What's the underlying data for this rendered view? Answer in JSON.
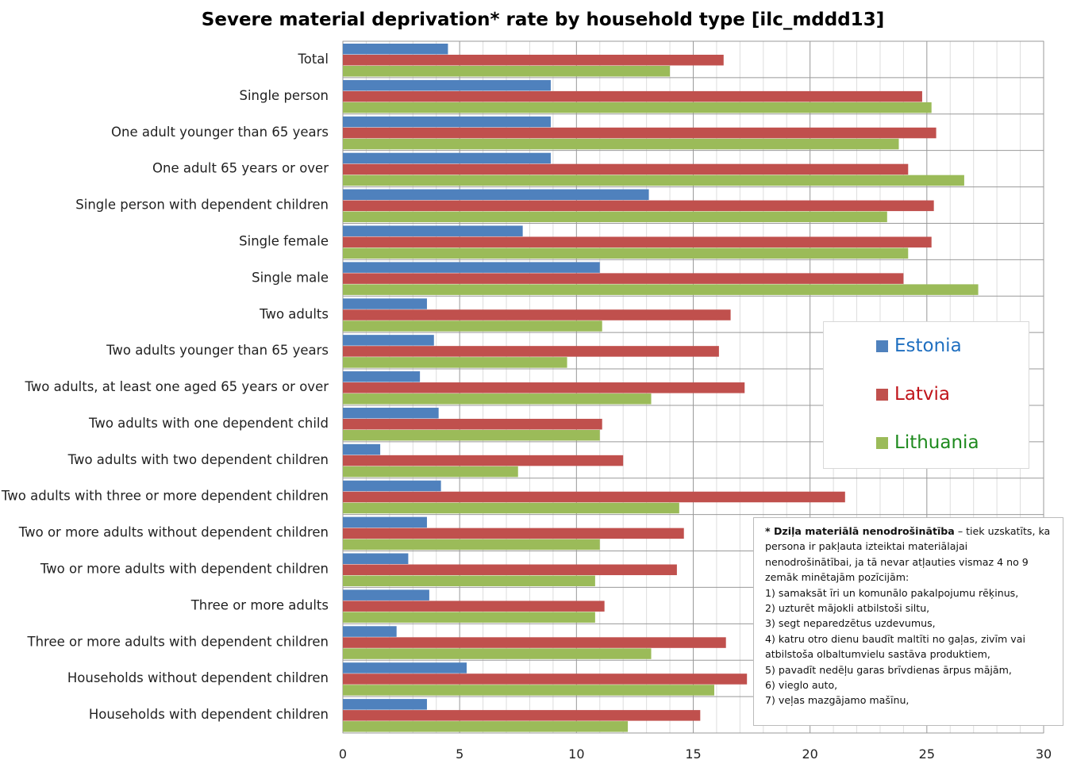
{
  "chart_data": {
    "type": "bar",
    "orientation": "horizontal",
    "title": "Severe material deprivation* rate by household type [ilc_mddd13]",
    "xlabel": "",
    "ylabel": "",
    "xlim": [
      0,
      30
    ],
    "xticks": [
      0,
      5,
      10,
      15,
      20,
      25,
      30
    ],
    "grid": true,
    "legend_position": "right",
    "categories": [
      "Total",
      "Single person",
      "One adult younger than 65 years",
      "One adult 65 years or over",
      "Single person with dependent children",
      "Single female",
      "Single male",
      "Two adults",
      "Two adults younger than 65 years",
      "Two adults, at least one aged 65 years or over",
      "Two adults with one dependent child",
      "Two adults with two dependent children",
      "Two adults with three or more dependent children",
      "Two or more adults without dependent children",
      "Two or more adults with dependent children",
      "Three or more adults",
      "Three or more adults with dependent children",
      "Households without dependent children",
      "Households with dependent children"
    ],
    "series": [
      {
        "name": "Estonia",
        "color": "#4f81bd",
        "text_color": "#1f6fc0",
        "values": [
          4.5,
          8.9,
          8.9,
          8.9,
          13.1,
          7.7,
          11.0,
          3.6,
          3.9,
          3.3,
          4.1,
          1.6,
          4.2,
          3.6,
          2.8,
          3.7,
          2.3,
          5.3,
          3.6
        ]
      },
      {
        "name": "Latvia",
        "color": "#c0504d",
        "text_color": "#c0141a",
        "values": [
          16.3,
          24.8,
          25.4,
          24.2,
          25.3,
          25.2,
          24.0,
          16.6,
          16.1,
          17.2,
          11.1,
          12.0,
          21.5,
          14.6,
          14.3,
          11.2,
          16.4,
          17.3,
          15.3
        ]
      },
      {
        "name": "Lithuania",
        "color": "#9bbb59",
        "text_color": "#1e8a1e",
        "values": [
          14.0,
          25.2,
          23.8,
          26.6,
          23.3,
          24.2,
          27.2,
          11.1,
          9.6,
          13.2,
          11.0,
          7.5,
          14.4,
          11.0,
          10.8,
          10.8,
          13.2,
          15.9,
          12.2
        ]
      }
    ]
  },
  "note": {
    "term": "* Dziļa materiālā nenodrošinātība",
    "definition": " – tiek uzskatīts, ka persona ir pakļauta izteiktai materiālajai nenodrošinātībai, ja tā nevar atļauties vismaz 4 no 9 zemāk minētajām pozīcijām:",
    "items": [
      "1) samaksāt īri un komunālo pakalpojumu rēķinus,",
      "2) uzturēt  mājokli atbilstoši siltu,",
      "3) segt neparedzētus  uzdevumus,",
      "4) katru otro dienu baudīt maltīti no gaļas, zivīm vai atbilstoša olbaltumvielu sastāva produktiem,",
      "5) pavadīt nedēļu garas brīvdienas ārpus mājām,",
      "6) vieglo auto,",
      "7) veļas mazgājamo mašīnu,"
    ]
  }
}
